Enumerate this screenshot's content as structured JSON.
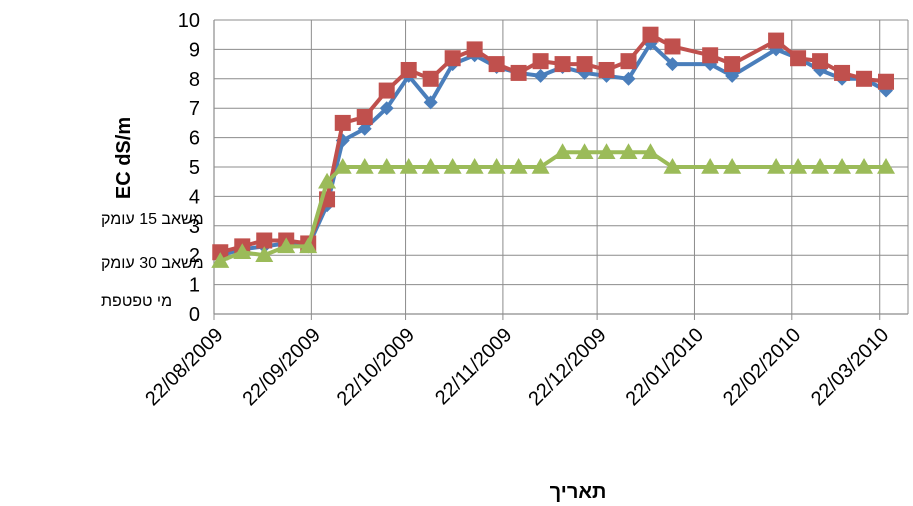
{
  "chart_data": {
    "type": "line",
    "title": "",
    "xlabel": "תאריך",
    "ylabel": "EC dS/m",
    "ylim": [
      0,
      10
    ],
    "yticks": [
      "0",
      "1",
      "2",
      "3",
      "4",
      "5",
      "6",
      "7",
      "8",
      "9",
      "10"
    ],
    "xlim": [
      "2009-08-22",
      "2010-03-31"
    ],
    "xticks": [
      {
        "date": "2009-08-22",
        "label": "22/08/2009"
      },
      {
        "date": "2009-09-22",
        "label": "22/09/2009"
      },
      {
        "date": "2009-10-22",
        "label": "22/10/2009"
      },
      {
        "date": "2009-11-22",
        "label": "22/11/2009"
      },
      {
        "date": "2009-12-22",
        "label": "22/12/2009"
      },
      {
        "date": "2010-01-22",
        "label": "22/01/2010"
      },
      {
        "date": "2010-02-22",
        "label": "22/02/2010"
      },
      {
        "date": "2010-03-22",
        "label": "22/03/2010"
      }
    ],
    "grid": true,
    "legend_position": "left",
    "series": [
      {
        "name": "משאב 15 עומק",
        "color": "#4a7ebb",
        "marker": "diamond",
        "points": [
          {
            "x": "2009-08-24",
            "y": 2.0
          },
          {
            "x": "2009-08-31",
            "y": 2.2
          },
          {
            "x": "2009-09-07",
            "y": 2.3
          },
          {
            "x": "2009-09-14",
            "y": 2.4
          },
          {
            "x": "2009-09-21",
            "y": 2.3
          },
          {
            "x": "2009-09-27",
            "y": 3.7
          },
          {
            "x": "2009-10-02",
            "y": 5.9
          },
          {
            "x": "2009-10-09",
            "y": 6.3
          },
          {
            "x": "2009-10-16",
            "y": 7.0
          },
          {
            "x": "2009-10-23",
            "y": 8.1
          },
          {
            "x": "2009-10-30",
            "y": 7.2
          },
          {
            "x": "2009-11-06",
            "y": 8.5
          },
          {
            "x": "2009-11-13",
            "y": 8.8
          },
          {
            "x": "2009-11-20",
            "y": 8.4
          },
          {
            "x": "2009-11-27",
            "y": 8.2
          },
          {
            "x": "2009-12-04",
            "y": 8.1
          },
          {
            "x": "2009-12-11",
            "y": 8.4
          },
          {
            "x": "2009-12-18",
            "y": 8.2
          },
          {
            "x": "2009-12-25",
            "y": 8.1
          },
          {
            "x": "2010-01-01",
            "y": 8.0
          },
          {
            "x": "2010-01-08",
            "y": 9.2
          },
          {
            "x": "2010-01-15",
            "y": 8.5
          },
          {
            "x": "2010-01-27",
            "y": 8.5
          },
          {
            "x": "2010-02-03",
            "y": 8.1
          },
          {
            "x": "2010-02-17",
            "y": 9.0
          },
          {
            "x": "2010-02-24",
            "y": 8.7
          },
          {
            "x": "2010-03-03",
            "y": 8.3
          },
          {
            "x": "2010-03-10",
            "y": 8.0
          },
          {
            "x": "2010-03-17",
            "y": 8.0
          },
          {
            "x": "2010-03-24",
            "y": 7.6
          }
        ]
      },
      {
        "name": "משאב 30 עומק",
        "color": "#c0504d",
        "marker": "square",
        "points": [
          {
            "x": "2009-08-24",
            "y": 2.1
          },
          {
            "x": "2009-08-31",
            "y": 2.3
          },
          {
            "x": "2009-09-07",
            "y": 2.5
          },
          {
            "x": "2009-09-14",
            "y": 2.5
          },
          {
            "x": "2009-09-21",
            "y": 2.4
          },
          {
            "x": "2009-09-27",
            "y": 3.9
          },
          {
            "x": "2009-10-02",
            "y": 6.5
          },
          {
            "x": "2009-10-09",
            "y": 6.7
          },
          {
            "x": "2009-10-16",
            "y": 7.6
          },
          {
            "x": "2009-10-23",
            "y": 8.3
          },
          {
            "x": "2009-10-30",
            "y": 8.0
          },
          {
            "x": "2009-11-06",
            "y": 8.7
          },
          {
            "x": "2009-11-13",
            "y": 9.0
          },
          {
            "x": "2009-11-20",
            "y": 8.5
          },
          {
            "x": "2009-11-27",
            "y": 8.2
          },
          {
            "x": "2009-12-04",
            "y": 8.6
          },
          {
            "x": "2009-12-11",
            "y": 8.5
          },
          {
            "x": "2009-12-18",
            "y": 8.5
          },
          {
            "x": "2009-12-25",
            "y": 8.3
          },
          {
            "x": "2010-01-01",
            "y": 8.6
          },
          {
            "x": "2010-01-08",
            "y": 9.5
          },
          {
            "x": "2010-01-15",
            "y": 9.1
          },
          {
            "x": "2010-01-27",
            "y": 8.8
          },
          {
            "x": "2010-02-03",
            "y": 8.5
          },
          {
            "x": "2010-02-17",
            "y": 9.3
          },
          {
            "x": "2010-02-24",
            "y": 8.7
          },
          {
            "x": "2010-03-03",
            "y": 8.6
          },
          {
            "x": "2010-03-10",
            "y": 8.2
          },
          {
            "x": "2010-03-17",
            "y": 8.0
          },
          {
            "x": "2010-03-24",
            "y": 7.9
          }
        ]
      },
      {
        "name": "מי טפטפת",
        "color": "#9bbb59",
        "marker": "triangle",
        "points": [
          {
            "x": "2009-08-24",
            "y": 1.8
          },
          {
            "x": "2009-08-31",
            "y": 2.1
          },
          {
            "x": "2009-09-07",
            "y": 2.0
          },
          {
            "x": "2009-09-14",
            "y": 2.3
          },
          {
            "x": "2009-09-21",
            "y": 2.3
          },
          {
            "x": "2009-09-27",
            "y": 4.5
          },
          {
            "x": "2009-10-02",
            "y": 5.0
          },
          {
            "x": "2009-10-09",
            "y": 5.0
          },
          {
            "x": "2009-10-16",
            "y": 5.0
          },
          {
            "x": "2009-10-23",
            "y": 5.0
          },
          {
            "x": "2009-10-30",
            "y": 5.0
          },
          {
            "x": "2009-11-06",
            "y": 5.0
          },
          {
            "x": "2009-11-13",
            "y": 5.0
          },
          {
            "x": "2009-11-20",
            "y": 5.0
          },
          {
            "x": "2009-11-27",
            "y": 5.0
          },
          {
            "x": "2009-12-04",
            "y": 5.0
          },
          {
            "x": "2009-12-11",
            "y": 5.5
          },
          {
            "x": "2009-12-18",
            "y": 5.5
          },
          {
            "x": "2009-12-25",
            "y": 5.5
          },
          {
            "x": "2010-01-01",
            "y": 5.5
          },
          {
            "x": "2010-01-08",
            "y": 5.5
          },
          {
            "x": "2010-01-15",
            "y": 5.0
          },
          {
            "x": "2010-01-27",
            "y": 5.0
          },
          {
            "x": "2010-02-03",
            "y": 5.0
          },
          {
            "x": "2010-02-17",
            "y": 5.0
          },
          {
            "x": "2010-02-24",
            "y": 5.0
          },
          {
            "x": "2010-03-03",
            "y": 5.0
          },
          {
            "x": "2010-03-10",
            "y": 5.0
          },
          {
            "x": "2010-03-17",
            "y": 5.0
          },
          {
            "x": "2010-03-24",
            "y": 5.0
          }
        ]
      }
    ]
  }
}
